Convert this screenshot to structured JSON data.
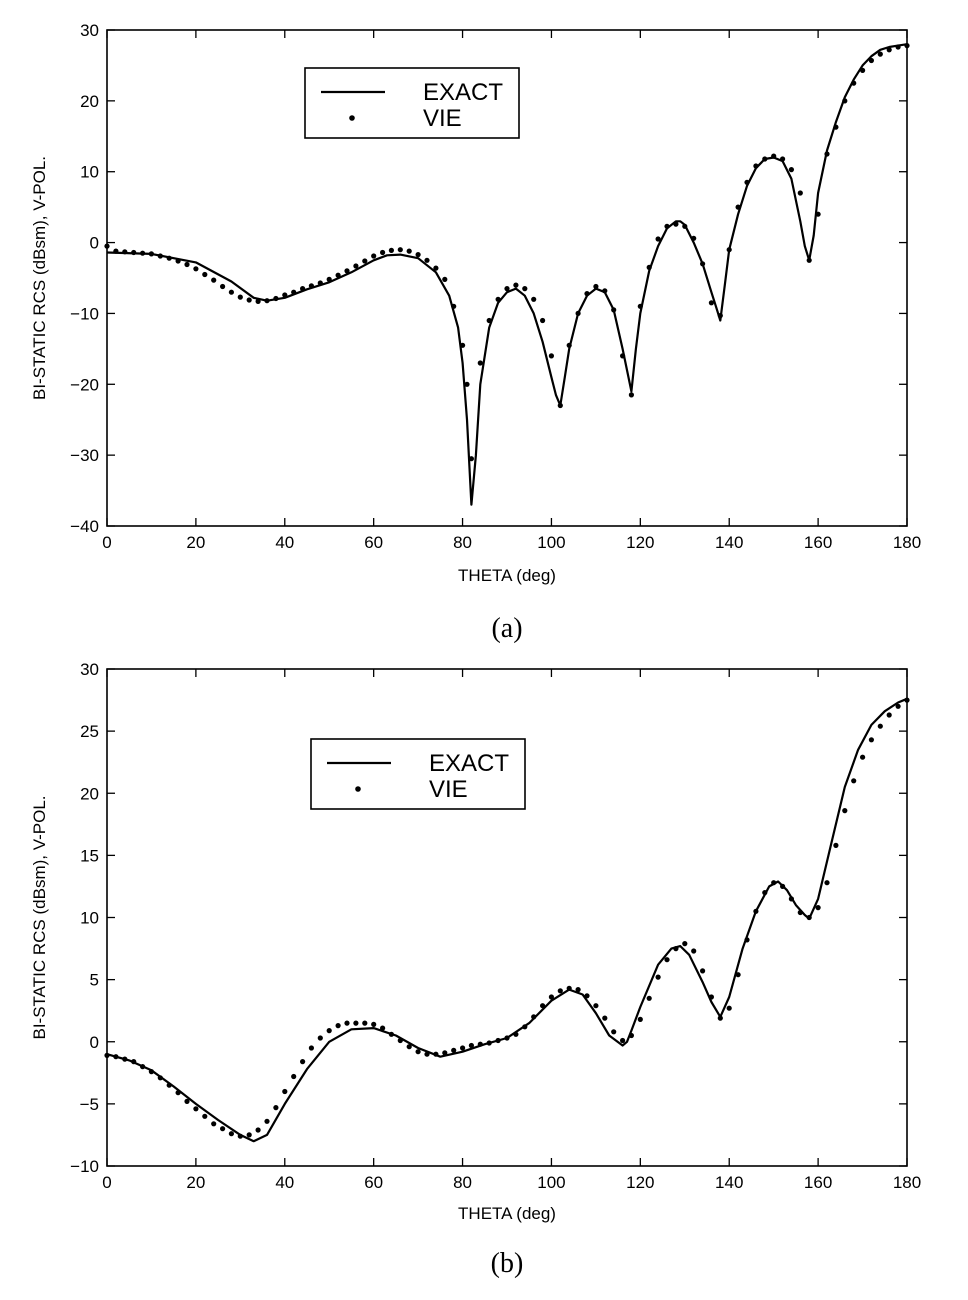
{
  "chart_data": [
    {
      "type": "line",
      "caption": "(a)",
      "xlabel": "THETA (deg)",
      "ylabel": "BI-STATIC RCS (dBsm), V-POL.",
      "xlim": [
        0,
        180
      ],
      "ylim": [
        -40,
        30
      ],
      "xticks": [
        0,
        20,
        40,
        60,
        80,
        100,
        120,
        140,
        160,
        180
      ],
      "yticks": [
        -40,
        -30,
        -20,
        -10,
        0,
        10,
        20,
        30
      ],
      "grid": false,
      "legend": {
        "placement": "top-left",
        "entries": [
          "EXACT",
          "VIE"
        ]
      },
      "series": [
        {
          "name": "EXACT",
          "style": "line",
          "x": [
            0,
            10,
            20,
            28,
            33,
            36,
            40,
            45,
            50,
            55,
            60,
            63,
            66,
            70,
            74,
            77,
            79,
            80,
            81,
            82,
            83,
            84,
            86,
            88,
            90,
            92,
            94,
            96,
            98,
            100,
            101,
            102,
            103,
            104,
            106,
            108,
            110,
            112,
            114,
            116,
            117,
            118,
            119,
            120,
            122,
            124,
            126,
            128,
            129,
            130,
            132,
            134,
            136,
            137,
            138,
            139,
            140,
            142,
            144,
            146,
            148,
            150,
            152,
            154,
            156,
            157,
            158,
            159,
            160,
            162,
            164,
            166,
            168,
            170,
            172,
            174,
            176,
            178,
            180
          ],
          "y": [
            -1.4,
            -1.6,
            -2.8,
            -5.5,
            -7.8,
            -8.2,
            -7.8,
            -6.6,
            -5.6,
            -4.2,
            -2.5,
            -1.8,
            -1.7,
            -2.2,
            -4.2,
            -7.5,
            -12,
            -17,
            -25,
            -37,
            -30,
            -20,
            -12,
            -8.5,
            -7,
            -6.5,
            -7.5,
            -10,
            -14,
            -19,
            -21.5,
            -23,
            -19,
            -15,
            -10,
            -7.5,
            -6.5,
            -7,
            -9.5,
            -15,
            -18,
            -21,
            -15,
            -10,
            -4,
            -0.5,
            2,
            3,
            3,
            2.5,
            0,
            -3,
            -7,
            -9,
            -11,
            -6,
            -1,
            4,
            8,
            10.5,
            11.8,
            12,
            11.5,
            9,
            3,
            -0.5,
            -2.5,
            1,
            7,
            13,
            17,
            20.5,
            23,
            25,
            26.3,
            27.2,
            27.6,
            27.8,
            28
          ]
        },
        {
          "name": "VIE",
          "style": "dots",
          "x": [
            0,
            2,
            4,
            6,
            8,
            10,
            12,
            14,
            16,
            18,
            20,
            22,
            24,
            26,
            28,
            30,
            32,
            34,
            36,
            38,
            40,
            42,
            44,
            46,
            48,
            50,
            52,
            54,
            56,
            58,
            60,
            62,
            64,
            66,
            68,
            70,
            72,
            74,
            76,
            78,
            80,
            81,
            82,
            84,
            86,
            88,
            90,
            92,
            94,
            96,
            98,
            100,
            102,
            104,
            106,
            108,
            110,
            112,
            114,
            116,
            118,
            120,
            122,
            124,
            126,
            128,
            130,
            132,
            134,
            136,
            138,
            140,
            142,
            144,
            146,
            148,
            150,
            152,
            154,
            156,
            158,
            160,
            162,
            164,
            166,
            168,
            170,
            172,
            174,
            176,
            178,
            180
          ],
          "y": [
            -0.5,
            -1.2,
            -1.3,
            -1.4,
            -1.5,
            -1.6,
            -1.9,
            -2.2,
            -2.6,
            -3.1,
            -3.7,
            -4.5,
            -5.3,
            -6.2,
            -7.0,
            -7.7,
            -8.1,
            -8.3,
            -8.2,
            -7.9,
            -7.4,
            -7.0,
            -6.5,
            -6.1,
            -5.7,
            -5.2,
            -4.6,
            -4.0,
            -3.3,
            -2.6,
            -1.9,
            -1.4,
            -1.1,
            -1.0,
            -1.2,
            -1.7,
            -2.5,
            -3.6,
            -5.2,
            -9.0,
            -14.5,
            -20,
            -30.5,
            -17,
            -11,
            -8,
            -6.5,
            -6,
            -6.5,
            -8,
            -11,
            -16,
            -23,
            -14.5,
            -10,
            -7.2,
            -6.2,
            -6.8,
            -9.5,
            -16,
            -21.5,
            -9,
            -3.5,
            0.5,
            2.3,
            2.6,
            2.3,
            0.6,
            -3,
            -8.5,
            -10.3,
            -1,
            5,
            8.5,
            10.8,
            11.8,
            12.2,
            11.8,
            10.3,
            7,
            -2.5,
            4,
            12.5,
            16.3,
            20,
            22.5,
            24.3,
            25.7,
            26.6,
            27.2,
            27.6,
            27.8
          ]
        }
      ]
    },
    {
      "type": "line",
      "caption": "(b)",
      "xlabel": "THETA (deg)",
      "ylabel": "BI-STATIC RCS (dBsm), V-POL.",
      "xlim": [
        0,
        180
      ],
      "ylim": [
        -10,
        30
      ],
      "xticks": [
        0,
        20,
        40,
        60,
        80,
        100,
        120,
        140,
        160,
        180
      ],
      "yticks": [
        -10,
        -5,
        0,
        5,
        10,
        15,
        20,
        25,
        30
      ],
      "grid": false,
      "legend": {
        "placement": "top-left",
        "entries": [
          "EXACT",
          "VIE"
        ]
      },
      "series": [
        {
          "name": "EXACT",
          "style": "line",
          "x": [
            0,
            5,
            10,
            15,
            20,
            25,
            30,
            33,
            36,
            40,
            45,
            50,
            55,
            60,
            65,
            70,
            75,
            80,
            85,
            90,
            95,
            100,
            104,
            107,
            110,
            113,
            116,
            117,
            118,
            120,
            124,
            127,
            129,
            131,
            134,
            136,
            138,
            140,
            143,
            146,
            149,
            151,
            153,
            155,
            157,
            158,
            160,
            163,
            166,
            169,
            172,
            175,
            178,
            180
          ],
          "y": [
            -1.0,
            -1.5,
            -2.3,
            -3.6,
            -5.0,
            -6.3,
            -7.5,
            -8.0,
            -7.5,
            -5.0,
            -2.2,
            0,
            1.0,
            1.1,
            0.5,
            -0.5,
            -1.2,
            -0.8,
            -0.2,
            0.3,
            1.5,
            3.3,
            4.2,
            3.8,
            2.3,
            0.5,
            -0.3,
            0,
            0.9,
            2.8,
            6.2,
            7.5,
            7.7,
            7.0,
            4.8,
            3.2,
            2.0,
            3.6,
            7.5,
            10.5,
            12.5,
            12.9,
            12.2,
            11.0,
            10.2,
            9.9,
            11.5,
            16.0,
            20.5,
            23.5,
            25.5,
            26.6,
            27.3,
            27.6
          ]
        },
        {
          "name": "VIE",
          "style": "dots",
          "x": [
            0,
            2,
            4,
            6,
            8,
            10,
            12,
            14,
            16,
            18,
            20,
            22,
            24,
            26,
            28,
            30,
            32,
            34,
            36,
            38,
            40,
            42,
            44,
            46,
            48,
            50,
            52,
            54,
            56,
            58,
            60,
            62,
            64,
            66,
            68,
            70,
            72,
            74,
            76,
            78,
            80,
            82,
            84,
            86,
            88,
            90,
            92,
            94,
            96,
            98,
            100,
            102,
            104,
            106,
            108,
            110,
            112,
            114,
            116,
            118,
            120,
            122,
            124,
            126,
            128,
            130,
            132,
            134,
            136,
            138,
            140,
            142,
            144,
            146,
            148,
            150,
            152,
            154,
            156,
            158,
            160,
            162,
            164,
            166,
            168,
            170,
            172,
            174,
            176,
            178,
            180
          ],
          "y": [
            -1.1,
            -1.2,
            -1.4,
            -1.6,
            -2.0,
            -2.4,
            -2.9,
            -3.5,
            -4.1,
            -4.8,
            -5.4,
            -6.0,
            -6.6,
            -7.0,
            -7.4,
            -7.6,
            -7.5,
            -7.1,
            -6.4,
            -5.3,
            -4.0,
            -2.8,
            -1.6,
            -0.5,
            0.3,
            0.9,
            1.3,
            1.5,
            1.5,
            1.5,
            1.4,
            1.1,
            0.6,
            0.1,
            -0.4,
            -0.8,
            -1.0,
            -1.0,
            -0.9,
            -0.7,
            -0.5,
            -0.3,
            -0.2,
            -0.1,
            0.1,
            0.3,
            0.6,
            1.2,
            2.0,
            2.9,
            3.6,
            4.1,
            4.3,
            4.2,
            3.7,
            2.9,
            1.9,
            0.8,
            0.1,
            0.5,
            1.8,
            3.5,
            5.2,
            6.6,
            7.5,
            7.9,
            7.3,
            5.7,
            3.6,
            1.9,
            2.7,
            5.4,
            8.2,
            10.5,
            12.0,
            12.8,
            12.5,
            11.5,
            10.4,
            10.0,
            10.8,
            12.8,
            15.8,
            18.6,
            21.0,
            22.9,
            24.3,
            25.4,
            26.3,
            27.0,
            27.5
          ]
        }
      ]
    }
  ]
}
